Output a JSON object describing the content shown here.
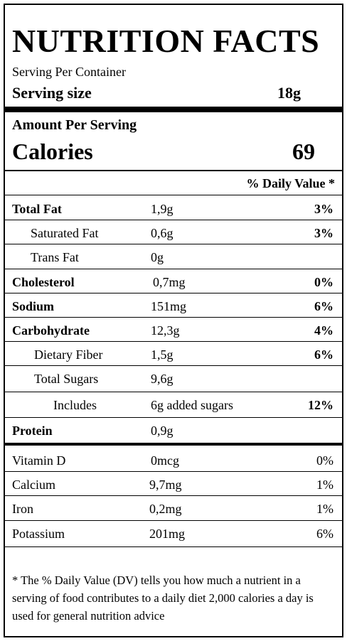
{
  "header": {
    "title": "NUTRITION FACTS",
    "servings_label": "Serving Per Container",
    "serving_size_label": "Serving size",
    "serving_size": "18g"
  },
  "calories": {
    "amount_label": "Amount Per Serving",
    "label": "Calories",
    "value": 69
  },
  "daily_value_header": "% Daily Value *",
  "nutrients": [
    {
      "name": "Total Fat",
      "amount": "1,9g",
      "dv": "3%"
    },
    {
      "name": "Saturated Fat",
      "amount": "0,6g",
      "dv": "3%"
    },
    {
      "name": "Trans Fat",
      "amount": "0g"
    },
    {
      "name": "Cholesterol",
      "amount": "0,7mg",
      "dv": "0%"
    },
    {
      "name": "Sodium",
      "amount": "151mg",
      "dv": "6%"
    },
    {
      "name": "Carbohydrate",
      "amount": "12,3g",
      "dv": "4%"
    },
    {
      "name": "Dietary Fiber",
      "amount": "1,5g",
      "dv": "6%"
    },
    {
      "name": "Total Sugars",
      "amount": "9,6g"
    },
    {
      "name": "Includes",
      "amount": "6g added sugars",
      "dv": "12%"
    },
    {
      "name": "Protein",
      "amount": "0,9g"
    }
  ],
  "vitamins": [
    {
      "name": "Vitamin D",
      "amount": "0mcg",
      "dv": "0%"
    },
    {
      "name": "Calcium",
      "amount": "9,7mg",
      "dv": "1%"
    },
    {
      "name": "Iron",
      "amount": "0,2mg",
      "dv": "1%"
    },
    {
      "name": "Potassium",
      "amount": "201mg",
      "dv": "6%"
    }
  ],
  "footnote": "* The % Daily Value (DV) tells you how much a nutrient in a serving of food contributes to a daily diet 2,000 calories a day is used for general nutrition advice"
}
